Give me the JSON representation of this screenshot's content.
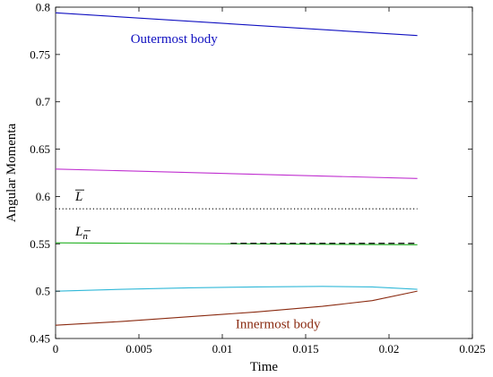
{
  "chart_data": {
    "type": "line",
    "title": "",
    "xlabel": "Time",
    "ylabel": "Angular Momenta",
    "xlim": [
      0,
      0.025
    ],
    "ylim": [
      0.45,
      0.8
    ],
    "x_ticks": [
      "0",
      "0.005",
      "0.01",
      "0.015",
      "0.02",
      "0.025"
    ],
    "y_ticks": [
      "0.45",
      "0.5",
      "0.55",
      "0.6",
      "0.65",
      "0.7",
      "0.75",
      "0.8"
    ],
    "grid": false,
    "series": [
      {
        "color": "#1010c0",
        "points": [
          [
            0,
            0.794
          ],
          [
            0.0217,
            0.77
          ]
        ]
      },
      {
        "color": "#c030d0",
        "points": [
          [
            0,
            0.629
          ],
          [
            0.0217,
            0.619
          ]
        ]
      },
      {
        "color": "#20b020",
        "points": [
          [
            0,
            0.551
          ],
          [
            0.0217,
            0.549
          ]
        ]
      },
      {
        "color": "#30b8d8",
        "points": [
          [
            0,
            0.5
          ],
          [
            0.004,
            0.502
          ],
          [
            0.008,
            0.5035
          ],
          [
            0.012,
            0.5045
          ],
          [
            0.016,
            0.505
          ],
          [
            0.019,
            0.5045
          ],
          [
            0.0217,
            0.502
          ]
        ]
      },
      {
        "color": "#8a2a10",
        "points": [
          [
            0,
            0.464
          ],
          [
            0.004,
            0.468
          ],
          [
            0.008,
            0.473
          ],
          [
            0.012,
            0.478
          ],
          [
            0.016,
            0.484
          ],
          [
            0.019,
            0.49
          ],
          [
            0.0217,
            0.5
          ]
        ]
      }
    ],
    "reference_lines": [
      {
        "label": "L",
        "overline": "bar",
        "y": 0.587,
        "x_range": [
          0,
          0.0217
        ],
        "style": "dotted",
        "color": "#000000"
      },
      {
        "label": "L",
        "subscript": "n",
        "overline": "subscript",
        "y": 0.5505,
        "x_range": [
          0.0105,
          0.0217
        ],
        "style": "dashed",
        "color": "#000000"
      }
    ],
    "annotations": [
      {
        "text": "Outermost body",
        "x": 0.0045,
        "y": 0.762,
        "color": "#1010c0"
      },
      {
        "text": "Innermost body",
        "x": 0.0108,
        "y": 0.461,
        "color": "#8a2a10"
      }
    ]
  }
}
